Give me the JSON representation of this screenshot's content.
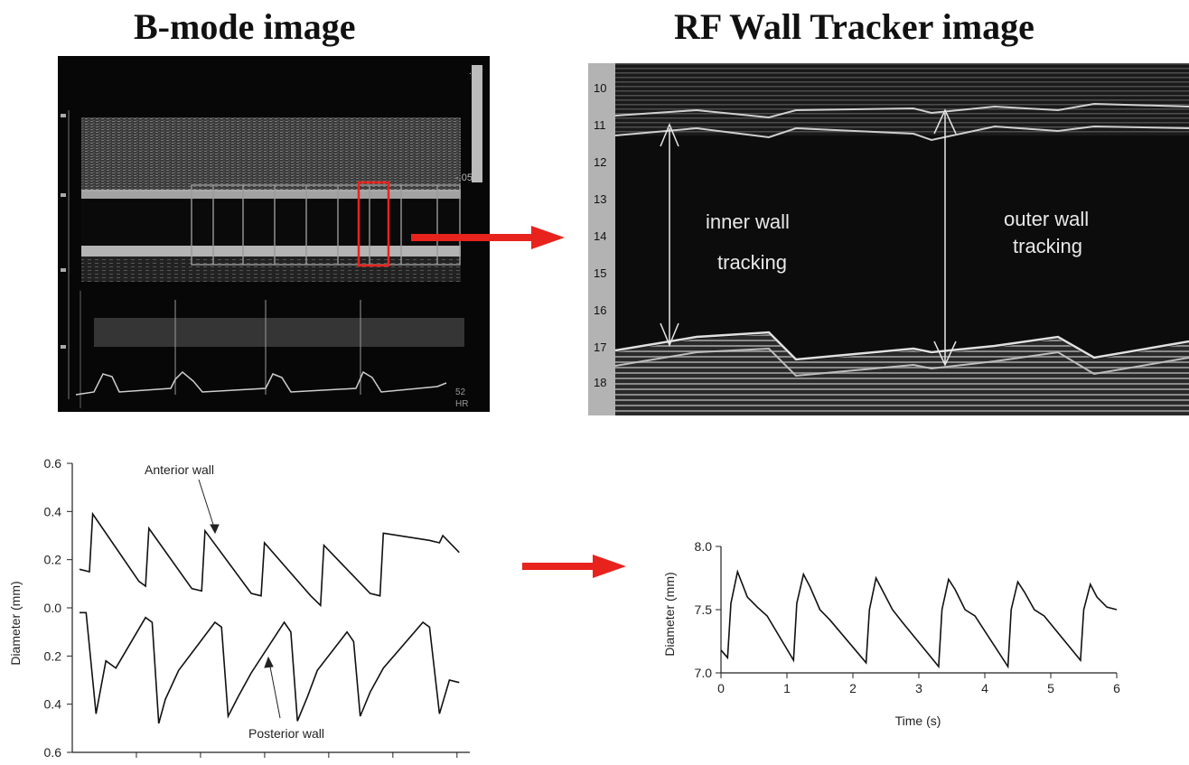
{
  "titles": {
    "bmode": "B-mode image",
    "rf": "RF Wall Tracker image"
  },
  "rf_panel": {
    "depth_ticks": [
      "10",
      "11",
      "12",
      "13",
      "14",
      "15",
      "16",
      "17",
      "18"
    ],
    "inner_label_line1": "inner wall",
    "inner_label_line2": "tracking",
    "outer_label_line1": "outer wall",
    "outer_label_line2": "tracking"
  },
  "bmode_panel": {
    "scale_labels": [
      ".05",
      "-.05"
    ],
    "hr_label": "HR"
  },
  "arrow_color": "#e8231d",
  "chart_data": [
    {
      "type": "line",
      "title": "",
      "xlabel": "",
      "ylabel": "Diameter (mm)",
      "ytick_labels": [
        "0.6",
        "0.4",
        "0.2",
        "0.0",
        "0.2",
        "0.4",
        "0.6"
      ],
      "annotations": [
        "Anterior wall",
        "Posterior wall"
      ],
      "series": [
        {
          "name": "Anterior wall",
          "x": [
            0.0,
            0.15,
            0.2,
            0.9,
            1.0,
            1.05,
            1.7,
            1.85,
            1.9,
            2.6,
            2.75,
            2.8,
            3.5,
            3.65,
            3.7,
            4.4,
            4.55,
            4.6,
            5.3,
            5.45,
            5.5,
            5.75
          ],
          "values": [
            0.16,
            0.15,
            0.39,
            0.11,
            0.09,
            0.33,
            0.08,
            0.07,
            0.32,
            0.06,
            0.05,
            0.27,
            0.05,
            0.01,
            0.26,
            0.06,
            0.05,
            0.31,
            0.28,
            0.27,
            0.3,
            0.23
          ]
        },
        {
          "name": "Posterior wall",
          "x": [
            0.0,
            0.1,
            0.25,
            0.4,
            0.55,
            1.0,
            1.1,
            1.2,
            1.3,
            1.5,
            2.05,
            2.15,
            2.25,
            2.4,
            2.6,
            3.1,
            3.2,
            3.3,
            3.45,
            3.6,
            4.05,
            4.15,
            4.25,
            4.4,
            4.6,
            5.2,
            5.3,
            5.45,
            5.6,
            5.75
          ],
          "values": [
            -0.02,
            -0.02,
            -0.44,
            -0.22,
            -0.25,
            -0.04,
            -0.06,
            -0.48,
            -0.38,
            -0.26,
            -0.06,
            -0.08,
            -0.45,
            -0.37,
            -0.27,
            -0.06,
            -0.1,
            -0.47,
            -0.37,
            -0.26,
            -0.1,
            -0.14,
            -0.45,
            -0.35,
            -0.25,
            -0.06,
            -0.08,
            -0.44,
            -0.3,
            -0.31
          ]
        }
      ]
    },
    {
      "type": "line",
      "title": "",
      "xlabel": "Time (s)",
      "ylabel": "Diameter (mm)",
      "ylim": [
        7.0,
        8.0
      ],
      "xlim": [
        0,
        6
      ],
      "xticks": [
        "0",
        "1",
        "2",
        "3",
        "4",
        "5",
        "6"
      ],
      "yticks": [
        "7.0",
        "7.5",
        "8.0"
      ],
      "series": [
        {
          "name": "",
          "x": [
            0.0,
            0.1,
            0.15,
            0.25,
            0.4,
            0.55,
            0.7,
            1.1,
            1.15,
            1.25,
            1.35,
            1.5,
            1.65,
            2.2,
            2.25,
            2.35,
            2.45,
            2.6,
            2.75,
            3.3,
            3.35,
            3.45,
            3.55,
            3.7,
            3.85,
            4.35,
            4.4,
            4.5,
            4.6,
            4.75,
            4.9,
            5.45,
            5.5,
            5.6,
            5.7,
            5.85,
            6.0
          ],
          "values": [
            7.18,
            7.12,
            7.55,
            7.8,
            7.6,
            7.52,
            7.45,
            7.1,
            7.55,
            7.78,
            7.68,
            7.5,
            7.42,
            7.08,
            7.5,
            7.75,
            7.65,
            7.5,
            7.4,
            7.05,
            7.5,
            7.74,
            7.66,
            7.5,
            7.45,
            7.05,
            7.5,
            7.72,
            7.64,
            7.5,
            7.45,
            7.1,
            7.5,
            7.7,
            7.6,
            7.52,
            7.5
          ]
        }
      ]
    }
  ]
}
